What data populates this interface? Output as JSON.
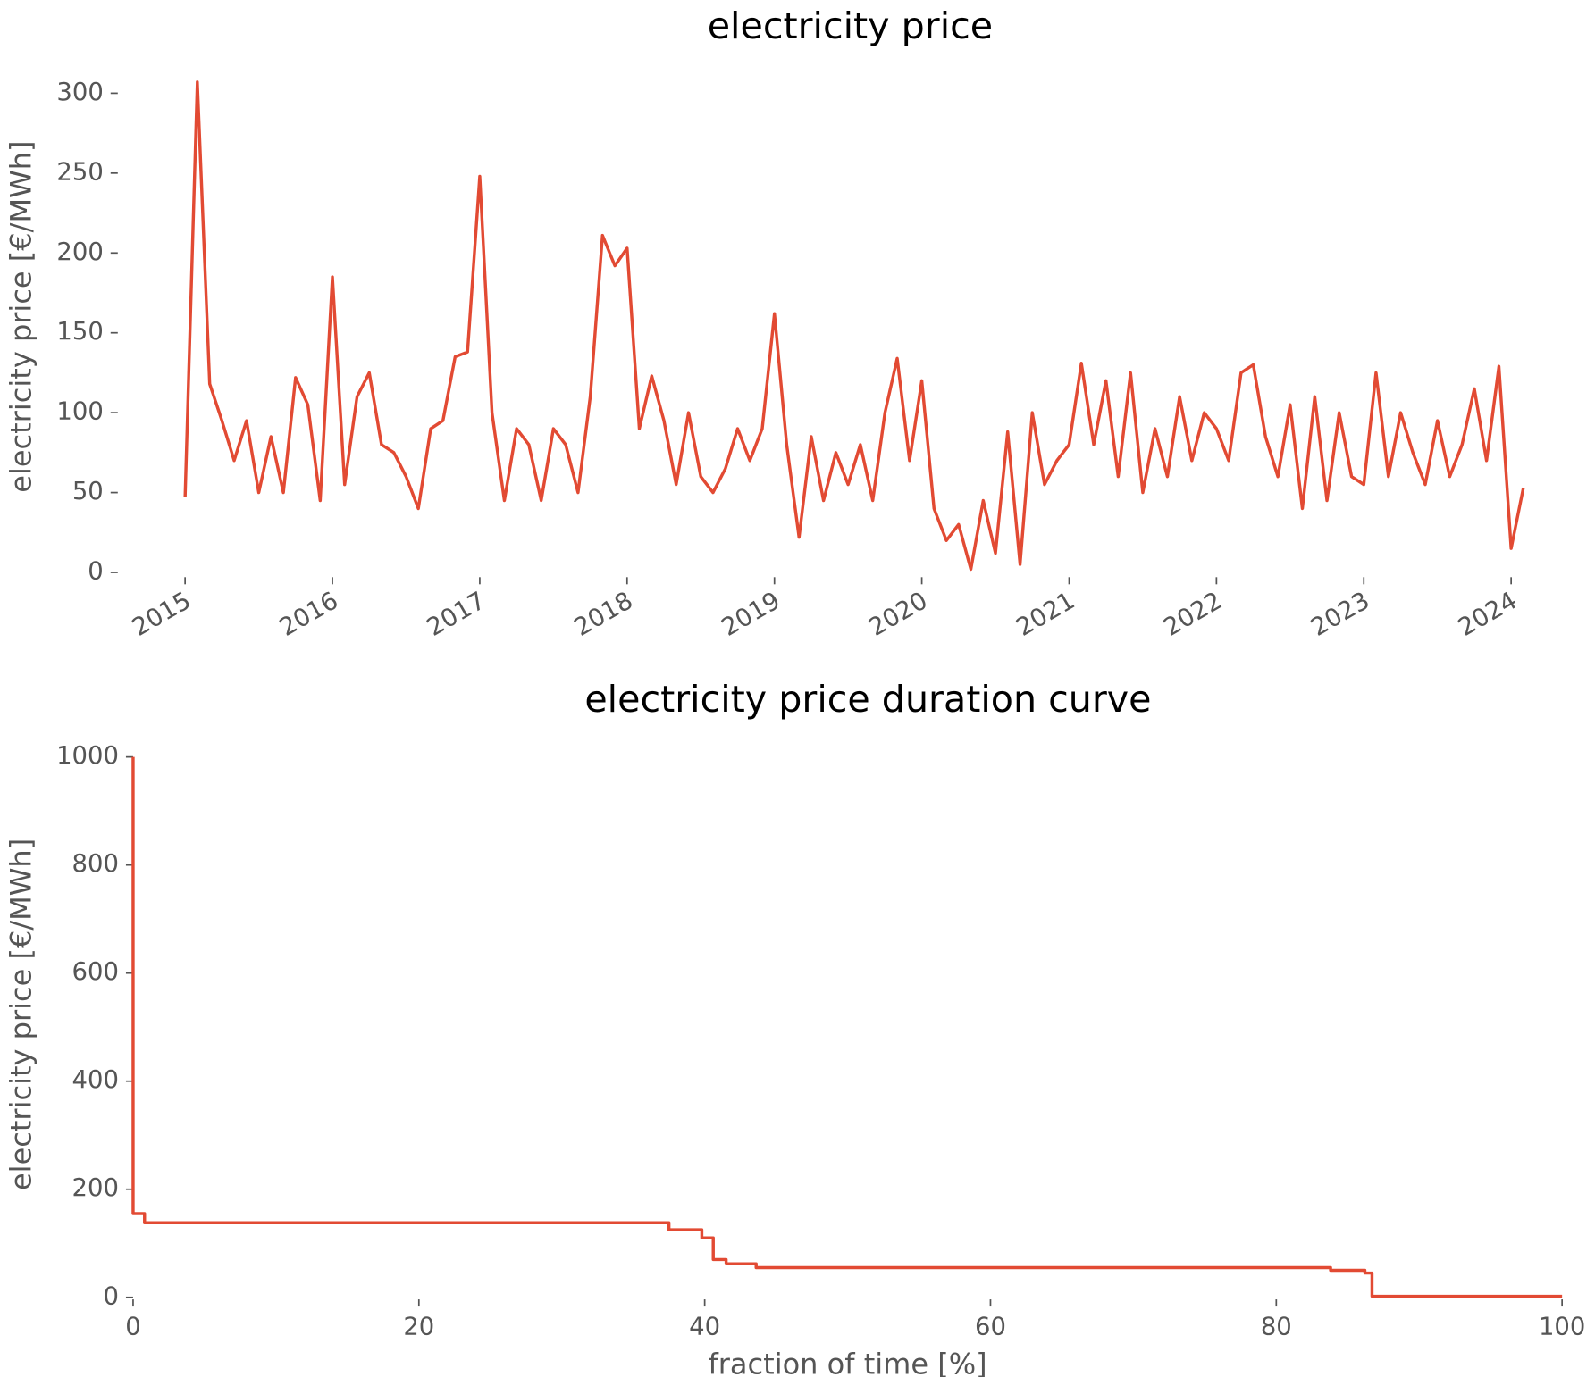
{
  "chart_data": [
    {
      "type": "line",
      "title": "electricity price",
      "ylabel": "electricity price [€/MWh]",
      "color": "#E24A33",
      "x": [
        2015,
        2015.083,
        2015.167,
        2015.25,
        2015.333,
        2015.417,
        2015.5,
        2015.583,
        2015.667,
        2015.75,
        2015.833,
        2015.917,
        2016,
        2016.083,
        2016.167,
        2016.25,
        2016.333,
        2016.417,
        2016.5,
        2016.583,
        2016.667,
        2016.75,
        2016.833,
        2016.917,
        2017,
        2017.083,
        2017.167,
        2017.25,
        2017.333,
        2017.417,
        2017.5,
        2017.583,
        2017.667,
        2017.75,
        2017.833,
        2017.917,
        2018,
        2018.083,
        2018.167,
        2018.25,
        2018.333,
        2018.417,
        2018.5,
        2018.583,
        2018.667,
        2018.75,
        2018.833,
        2018.917,
        2019,
        2019.083,
        2019.167,
        2019.25,
        2019.333,
        2019.417,
        2019.5,
        2019.583,
        2019.667,
        2019.75,
        2019.833,
        2019.917,
        2020,
        2020.083,
        2020.167,
        2020.25,
        2020.333,
        2020.417,
        2020.5,
        2020.583,
        2020.667,
        2020.75,
        2020.833,
        2020.917,
        2021,
        2021.083,
        2021.167,
        2021.25,
        2021.333,
        2021.417,
        2021.5,
        2021.583,
        2021.667,
        2021.75,
        2021.833,
        2021.917,
        2022,
        2022.083,
        2022.167,
        2022.25,
        2022.333,
        2022.417,
        2022.5,
        2022.583,
        2022.667,
        2022.75,
        2022.833,
        2022.917,
        2023,
        2023.083,
        2023.167,
        2023.25,
        2023.333,
        2023.417,
        2023.5,
        2023.583,
        2023.667,
        2023.75,
        2023.833,
        2023.917,
        2024,
        2024.083
      ],
      "values": [
        47,
        307,
        118,
        95,
        70,
        95,
        50,
        85,
        50,
        122,
        105,
        45,
        185,
        55,
        110,
        125,
        80,
        75,
        60,
        40,
        90,
        95,
        135,
        138,
        248,
        100,
        45,
        90,
        80,
        45,
        90,
        80,
        50,
        110,
        211,
        192,
        203,
        90,
        123,
        95,
        55,
        100,
        60,
        50,
        65,
        90,
        70,
        90,
        162,
        80,
        22,
        85,
        45,
        75,
        55,
        80,
        45,
        100,
        134,
        70,
        120,
        40,
        20,
        30,
        2,
        45,
        12,
        88,
        5,
        100,
        55,
        70,
        80,
        131,
        80,
        120,
        60,
        125,
        50,
        90,
        60,
        110,
        70,
        100,
        90,
        70,
        125,
        130,
        85,
        60,
        105,
        40,
        110,
        45,
        100,
        60,
        55,
        125,
        60,
        100,
        75,
        55,
        95,
        60,
        80,
        115,
        70,
        129,
        15,
        53
      ],
      "xlim": [
        2014.55,
        2024.2
      ],
      "xticks": [
        2015,
        2016,
        2017,
        2018,
        2019,
        2020,
        2021,
        2022,
        2023,
        2024
      ],
      "ylim": [
        -10,
        320
      ],
      "yticks": [
        0,
        50,
        100,
        150,
        200,
        250,
        300
      ]
    },
    {
      "type": "line",
      "title": "electricity price duration curve",
      "xlabel": "fraction of time [%]",
      "ylabel": "electricity price [€/MWh]",
      "color": "#E24A33",
      "x": [
        0,
        0,
        0.8,
        0.8,
        37.5,
        37.5,
        39.8,
        39.8,
        40.6,
        40.6,
        41.5,
        41.5,
        43.6,
        43.6,
        83.8,
        83.8,
        86.2,
        86.2,
        86.7,
        86.7,
        100
      ],
      "values": [
        1000,
        155,
        155,
        138,
        138,
        125,
        125,
        110,
        110,
        70,
        70,
        62,
        62,
        55,
        55,
        50,
        50,
        45,
        45,
        2,
        2
      ],
      "xlim": [
        0,
        100
      ],
      "xticks": [
        0,
        20,
        40,
        60,
        80,
        100
      ],
      "ylim": [
        0,
        1000
      ],
      "yticks": [
        0,
        200,
        400,
        600,
        800,
        1000
      ]
    }
  ]
}
